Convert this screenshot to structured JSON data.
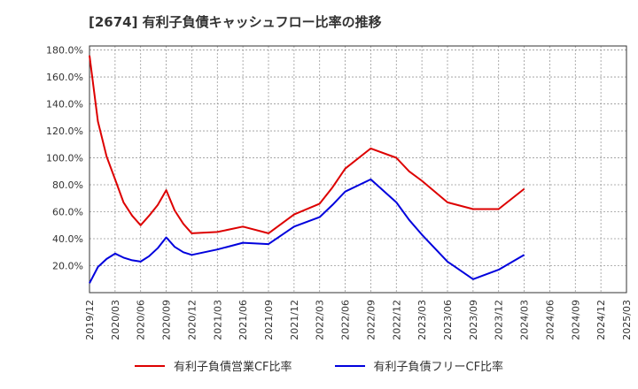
{
  "chart_data": {
    "type": "line",
    "title": "[2674]  有利子負債キャッシュフロー比率の推移",
    "xlabel": "",
    "ylabel": "",
    "ylim": [
      0,
      180
    ],
    "y_ticks": [
      20,
      40,
      60,
      80,
      100,
      120,
      140,
      160,
      180
    ],
    "y_tick_labels": [
      "20.0%",
      "40.0%",
      "60.0%",
      "80.0%",
      "100.0%",
      "120.0%",
      "140.0%",
      "160.0%",
      "180.0%"
    ],
    "categories": [
      "2019/12",
      "2020/03",
      "2020/06",
      "2020/09",
      "2020/12",
      "2021/03",
      "2021/06",
      "2021/09",
      "2021/12",
      "2022/03",
      "2022/06",
      "2022/09",
      "2022/12",
      "2023/03",
      "2023/06",
      "2023/09",
      "2023/12",
      "2024/03",
      "2024/06",
      "2024/09",
      "2024/12",
      "2025/03"
    ],
    "grid": true,
    "legend_position": "bottom",
    "series": [
      {
        "name": "有利子負債営業CF比率",
        "color": "#dd0000",
        "points": [
          [
            0,
            176
          ],
          [
            0.33,
            127
          ],
          [
            0.67,
            101
          ],
          [
            1,
            84
          ],
          [
            1.33,
            67
          ],
          [
            1.67,
            57
          ],
          [
            2,
            50
          ],
          [
            2.33,
            57
          ],
          [
            2.67,
            65
          ],
          [
            3,
            76
          ],
          [
            3.33,
            61
          ],
          [
            3.67,
            51
          ],
          [
            4,
            44
          ],
          [
            5,
            45
          ],
          [
            6,
            49
          ],
          [
            7,
            44
          ],
          [
            8,
            58
          ],
          [
            9,
            66
          ],
          [
            9.5,
            78
          ],
          [
            10,
            92
          ],
          [
            11,
            107
          ],
          [
            12,
            100
          ],
          [
            12.5,
            90
          ],
          [
            13,
            83
          ],
          [
            14,
            67
          ],
          [
            15,
            62
          ],
          [
            16,
            62
          ],
          [
            17,
            77
          ]
        ]
      },
      {
        "name": "有利子負債フリーCF比率",
        "color": "#0000dd",
        "points": [
          [
            0,
            7
          ],
          [
            0.33,
            19
          ],
          [
            0.67,
            25
          ],
          [
            1,
            29
          ],
          [
            1.33,
            26
          ],
          [
            1.67,
            24
          ],
          [
            2,
            23
          ],
          [
            2.33,
            27
          ],
          [
            2.67,
            33
          ],
          [
            3,
            41
          ],
          [
            3.33,
            34
          ],
          [
            3.67,
            30
          ],
          [
            4,
            28
          ],
          [
            5,
            32
          ],
          [
            6,
            37
          ],
          [
            7,
            36
          ],
          [
            8,
            49
          ],
          [
            9,
            56
          ],
          [
            9.5,
            65
          ],
          [
            10,
            75
          ],
          [
            11,
            84
          ],
          [
            12,
            67
          ],
          [
            12.5,
            54
          ],
          [
            13,
            43
          ],
          [
            14,
            23
          ],
          [
            15,
            10
          ],
          [
            16,
            17
          ],
          [
            17,
            28
          ]
        ]
      }
    ]
  },
  "colors": {
    "grid": "#999999",
    "axis": "#333333",
    "background": "#ffffff"
  }
}
